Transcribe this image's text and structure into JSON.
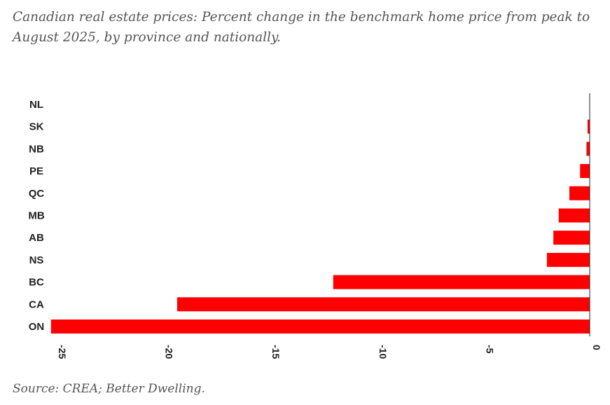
{
  "title": "Canadian real estate prices: Percent change in the benchmark home price from peak to August 2025, by province and nationally.",
  "source": "Source: CREA; Better Dwelling.",
  "chart_data": {
    "type": "bar",
    "orientation": "horizontal",
    "categories": [
      "NL",
      "SK",
      "NB",
      "PE",
      "QC",
      "MB",
      "AB",
      "NS",
      "BC",
      "CA",
      "ON"
    ],
    "values": [
      0,
      -0.1,
      -0.15,
      -0.45,
      -0.95,
      -1.45,
      -1.7,
      -2.0,
      -12.0,
      -19.3,
      -25.2
    ],
    "xlim": [
      -25.5,
      0
    ],
    "xticks": [
      -25,
      -20,
      -15,
      -10,
      -5,
      0
    ],
    "xtick_labels": [
      "-25",
      "-20",
      "-15",
      "-10",
      "-5",
      "0"
    ],
    "bar_color": "#ff0000",
    "grid": false,
    "legend": "none"
  }
}
